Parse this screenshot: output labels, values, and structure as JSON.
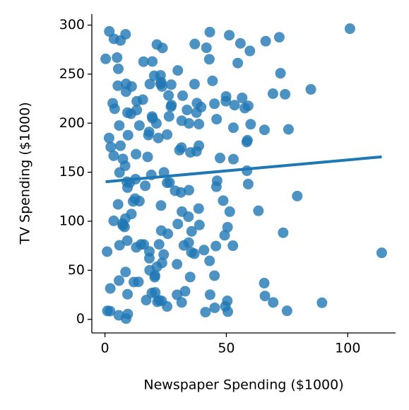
{
  "chart_data": {
    "type": "scatter",
    "xlabel": "Newspaper Spending ($1000)",
    "ylabel": "TV Spending ($1000)",
    "color": "#1f77b4",
    "fit_line": true,
    "x": [
      69.2,
      45.1,
      69.3,
      58.5,
      58.4,
      75,
      23.5,
      11.6,
      1,
      21.2,
      24.2,
      4,
      65.9,
      7.2,
      46,
      52.9,
      114,
      55.8,
      18.3,
      19.1,
      53.4,
      23.5,
      49.6,
      26.2,
      18.3,
      19.5,
      12.6,
      22.9,
      22.9,
      40.8,
      43.2,
      38.6,
      30,
      0.3,
      7.4,
      8.5,
      5,
      45.7,
      35.1,
      32,
      31.6,
      38.7,
      1.8,
      26.4,
      43.3,
      31.5,
      35.7,
      18.5,
      49.9,
      36.8,
      34.6,
      3.6,
      39.6,
      58.7,
      15.9,
      60,
      41.4,
      16.6,
      37.7,
      9.3,
      21.4,
      54.7,
      27.3,
      8.4,
      28.9,
      0.9,
      2.2,
      10.2,
      11,
      27.2,
      38.7,
      31.7,
      19.3,
      31.3,
      13.1,
      89.4,
      20.7,
      14.2,
      9.4,
      23.1,
      22.3,
      36.9,
      32.5,
      35.6,
      33.8,
      65.7,
      16,
      63.2,
      73.4,
      51.4,
      9.3,
      33,
      59,
      72.3,
      10.9,
      52.9,
      5.9,
      22,
      51.2,
      45.9,
      49.8,
      100.9,
      21.4,
      17.9,
      5.3,
      59,
      29.7,
      23.2,
      25.6,
      5.5,
      56.5,
      23.2,
      2.4,
      10.7,
      34.5,
      52.7,
      25.6,
      14.8,
      79.2,
      22.3,
      46.2,
      50.4,
      15.6,
      12.4,
      74.2,
      25.9,
      50.6,
      9.2,
      3.2,
      43.1,
      8.7,
      43,
      2.1,
      45.1,
      65.6,
      8.5,
      9.3,
      59.7,
      20.5,
      1.7,
      12.9,
      75.6,
      37.9,
      34.4,
      38.9,
      9,
      8.7,
      44.3,
      11.9,
      20.6,
      37,
      48.7,
      14.2,
      37.7,
      9.5,
      5.7,
      50.5,
      24.3,
      45.2,
      34.6,
      30.7,
      49.3,
      25.6,
      7.4,
      5.4,
      84.8,
      21.6,
      19.4,
      57.6,
      6.4,
      18.4,
      47.4,
      17,
      12.8,
      13.1,
      41.8,
      20.3,
      35.2,
      23.7,
      17.6,
      8.3,
      27.4,
      29.7,
      71.8,
      30,
      19.6,
      26.6,
      18.2,
      3.7,
      23.4,
      5.8,
      6,
      31.6,
      3.6,
      6,
      13.8,
      8.1,
      6.4,
      66.2,
      8.7
    ],
    "values": [
      230.1,
      44.5,
      17.2,
      151.5,
      180.8,
      8.7,
      57.5,
      120.2,
      8.6,
      199.8,
      66.1,
      214.7,
      23.8,
      97.5,
      204.1,
      195.4,
      67.8,
      281.4,
      69.2,
      147.3,
      218.4,
      237.4,
      13.2,
      228.3,
      62.3,
      262.9,
      142.9,
      240.1,
      248.8,
      70.6,
      292.9,
      112.9,
      97.2,
      265.6,
      95.7,
      290.7,
      266.9,
      74.7,
      43.1,
      228,
      202.5,
      177,
      293.6,
      206.9,
      25.1,
      175.1,
      89.7,
      239.9,
      227.2,
      66.9,
      199.8,
      100.4,
      216.4,
      182.6,
      262.7,
      198.9,
      7.3,
      136.2,
      210.8,
      210.7,
      53.5,
      261.3,
      239.3,
      102.7,
      131.1,
      69,
      31.5,
      139.3,
      237.4,
      216.8,
      199.1,
      109.8,
      26.8,
      129.4,
      213.4,
      16.9,
      27.5,
      120.5,
      5.4,
      116,
      76.4,
      239.8,
      75.3,
      68.4,
      213.5,
      193.2,
      76.3,
      110.7,
      88.3,
      109.8,
      134.3,
      28.6,
      217.7,
      250.9,
      107.4,
      163.3,
      197.6,
      184.9,
      289.7,
      135.2,
      222.4,
      296.4,
      280.2,
      187.9,
      238.2,
      137.9,
      25,
      90.4,
      13.1,
      255.4,
      225.8,
      241.7,
      175.7,
      209.6,
      78.2,
      75.1,
      139.2,
      76.4,
      125.7,
      19.4,
      141.3,
      18.8,
      224,
      123.1,
      229.5,
      87.2,
      7.8,
      80.2,
      220.3,
      59.6,
      0.7,
      265.2,
      8.4,
      219.8,
      36.9,
      48.3,
      25.6,
      273.7,
      43,
      184.9,
      73.4,
      193.7,
      220.5,
      104.6,
      96.2,
      140.3,
      240.1,
      243.2,
      38,
      44.7,
      280.7,
      121,
      197.6,
      171.3,
      187.8,
      4.1,
      93.9,
      149.8,
      11.7,
      131.7,
      172.5,
      85.7,
      188.4,
      163.5,
      117.2,
      234.5,
      17.9,
      206.8,
      215.4,
      284.3,
      50,
      164.5,
      19.6,
      168.4,
      222.4,
      276.9,
      248.4,
      170.2,
      276.7,
      165.6,
      156.6,
      218.5,
      56.2,
      287.6,
      253.8,
      205,
      139.5,
      191.1,
      286,
      18.7,
      39.5,
      75.5,
      17.2,
      166.8,
      149.7,
      38.2,
      94.2,
      177,
      283.6,
      232.1
    ],
    "xlim": [
      -5.4,
      119.7
    ],
    "ylim": [
      -13.9,
      311.2
    ],
    "xticks": [
      0,
      50,
      100
    ],
    "yticks": [
      0,
      50,
      100,
      150,
      200,
      250,
      300
    ]
  }
}
